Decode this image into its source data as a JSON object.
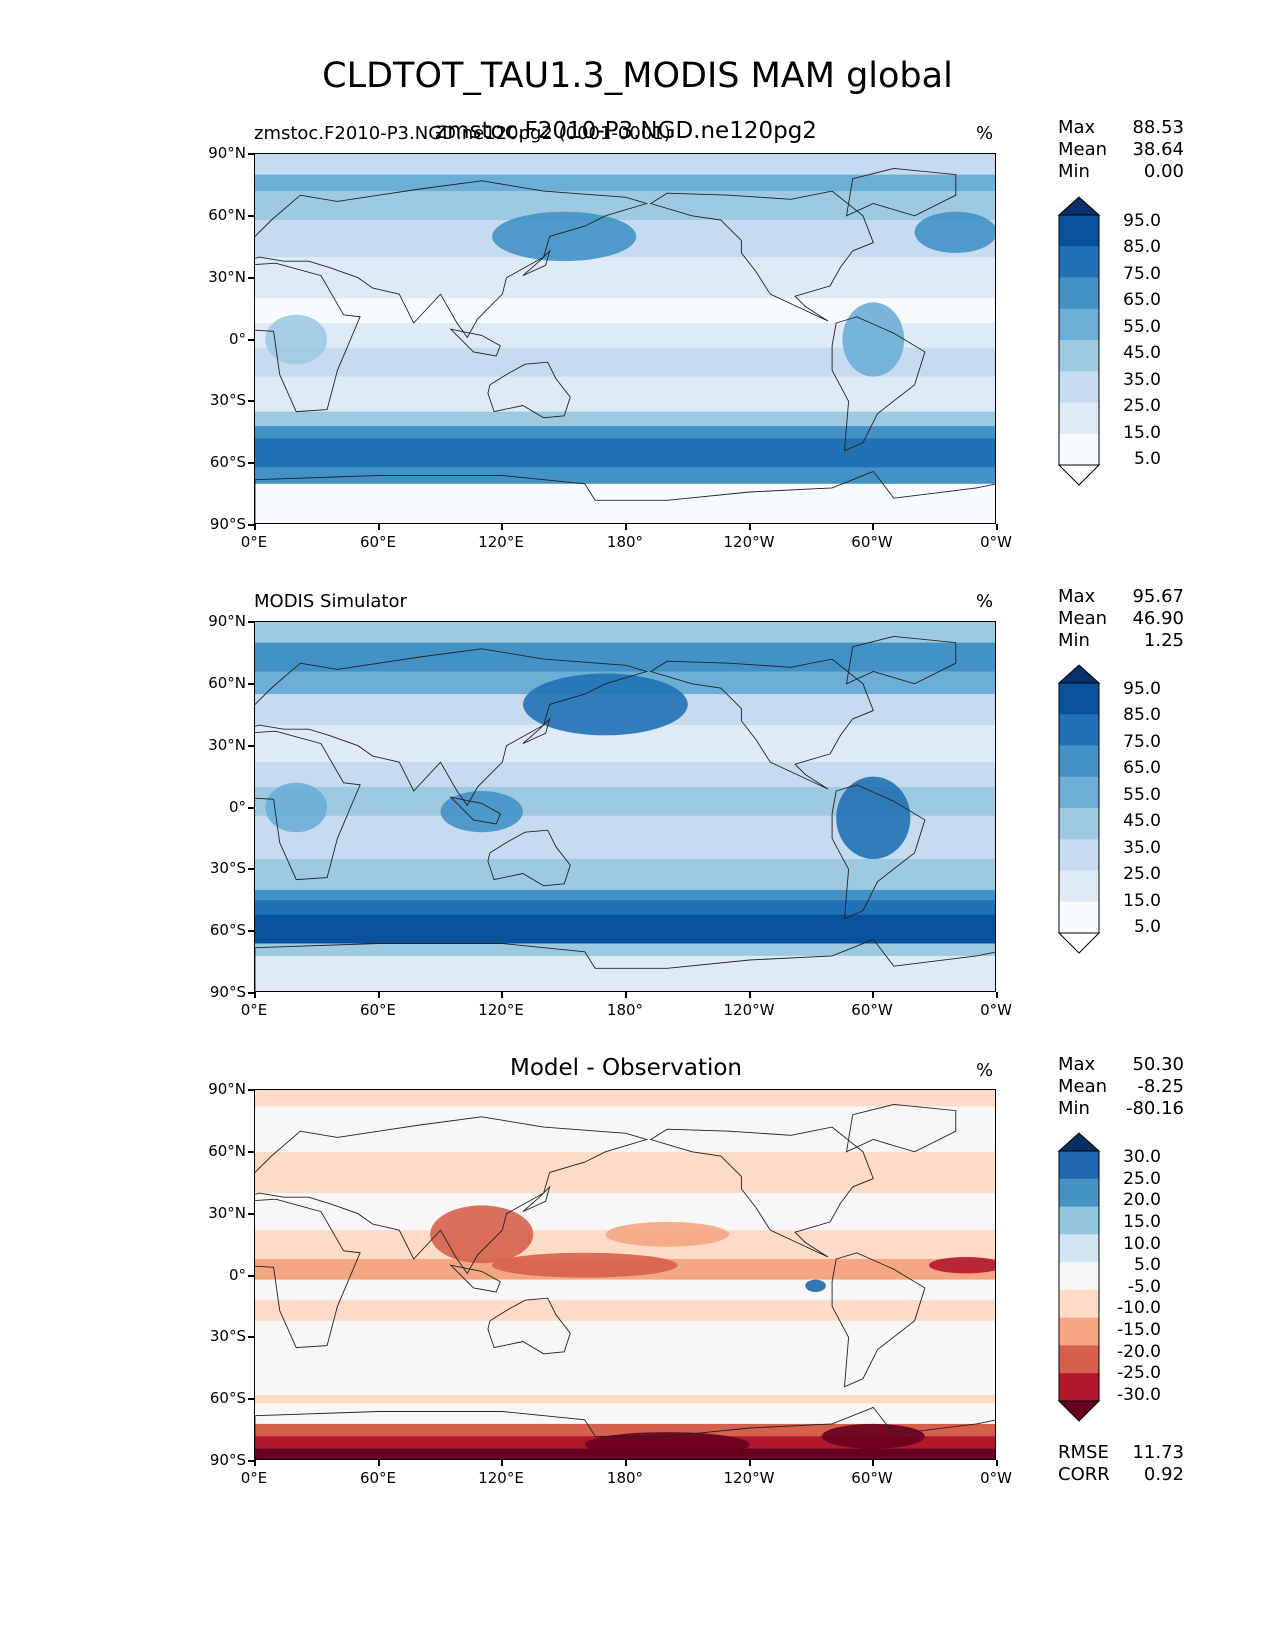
{
  "title": "CLDTOT_TAU1.3_MODIS MAM global",
  "panels": [
    {
      "id": "model",
      "title_left": "zmstoc.F2010-P3.NGD.ne120pg2 (0001-0001)",
      "title_center": "zmstoc.F2010-P3.NGD.ne120pg2",
      "units": "%",
      "stats": [
        {
          "label": "Max",
          "value": "88.53"
        },
        {
          "label": "Mean",
          "value": "38.64"
        },
        {
          "label": "Min",
          "value": "0.00"
        }
      ],
      "colorbar": [
        "95.0",
        "85.0",
        "75.0",
        "65.0",
        "55.0",
        "45.0",
        "35.0",
        "25.0",
        "15.0",
        "5.0"
      ],
      "colors": [
        "#08306b",
        "#08519c",
        "#2171b5",
        "#4292c6",
        "#6baed6",
        "#9ecae1",
        "#c6dbef",
        "#deebf7",
        "#f7fbff",
        "#ffffff"
      ]
    },
    {
      "id": "obs",
      "title_left": "MODIS Simulator",
      "title_center": "",
      "units": "%",
      "stats": [
        {
          "label": "Max",
          "value": "95.67"
        },
        {
          "label": "Mean",
          "value": "46.90"
        },
        {
          "label": "Min",
          "value": "1.25"
        }
      ],
      "colorbar": [
        "95.0",
        "85.0",
        "75.0",
        "65.0",
        "55.0",
        "45.0",
        "35.0",
        "25.0",
        "15.0",
        "5.0"
      ],
      "colors": [
        "#08306b",
        "#08519c",
        "#2171b5",
        "#4292c6",
        "#6baed6",
        "#9ecae1",
        "#c6dbef",
        "#deebf7",
        "#f7fbff",
        "#ffffff"
      ]
    },
    {
      "id": "diff",
      "title_left": "",
      "title_center": "Model - Observation",
      "units": "%",
      "stats": [
        {
          "label": "Max",
          "value": "50.30"
        },
        {
          "label": "Mean",
          "value": "-8.25"
        },
        {
          "label": "Min",
          "value": "-80.16"
        }
      ],
      "colorbar": [
        "30.0",
        "25.0",
        "20.0",
        "15.0",
        "10.0",
        "5.0",
        "-5.0",
        "-10.0",
        "-15.0",
        "-20.0",
        "-25.0",
        "-30.0"
      ],
      "colors": [
        "#053061",
        "#2166ac",
        "#4393c3",
        "#92c5de",
        "#d1e5f0",
        "#f7f7f7",
        "#fddbc7",
        "#f4a582",
        "#d6604d",
        "#b2182b",
        "#67001f"
      ],
      "metrics": [
        {
          "label": "RMSE",
          "value": "11.73"
        },
        {
          "label": "CORR",
          "value": "0.92"
        }
      ]
    }
  ],
  "axes": {
    "y_ticks": [
      "90°N",
      "60°N",
      "30°N",
      "0°",
      "30°S",
      "60°S",
      "90°S"
    ],
    "x_ticks": [
      "0°E",
      "60°E",
      "120°E",
      "180°",
      "120°W",
      "60°W",
      "0°W"
    ]
  }
}
